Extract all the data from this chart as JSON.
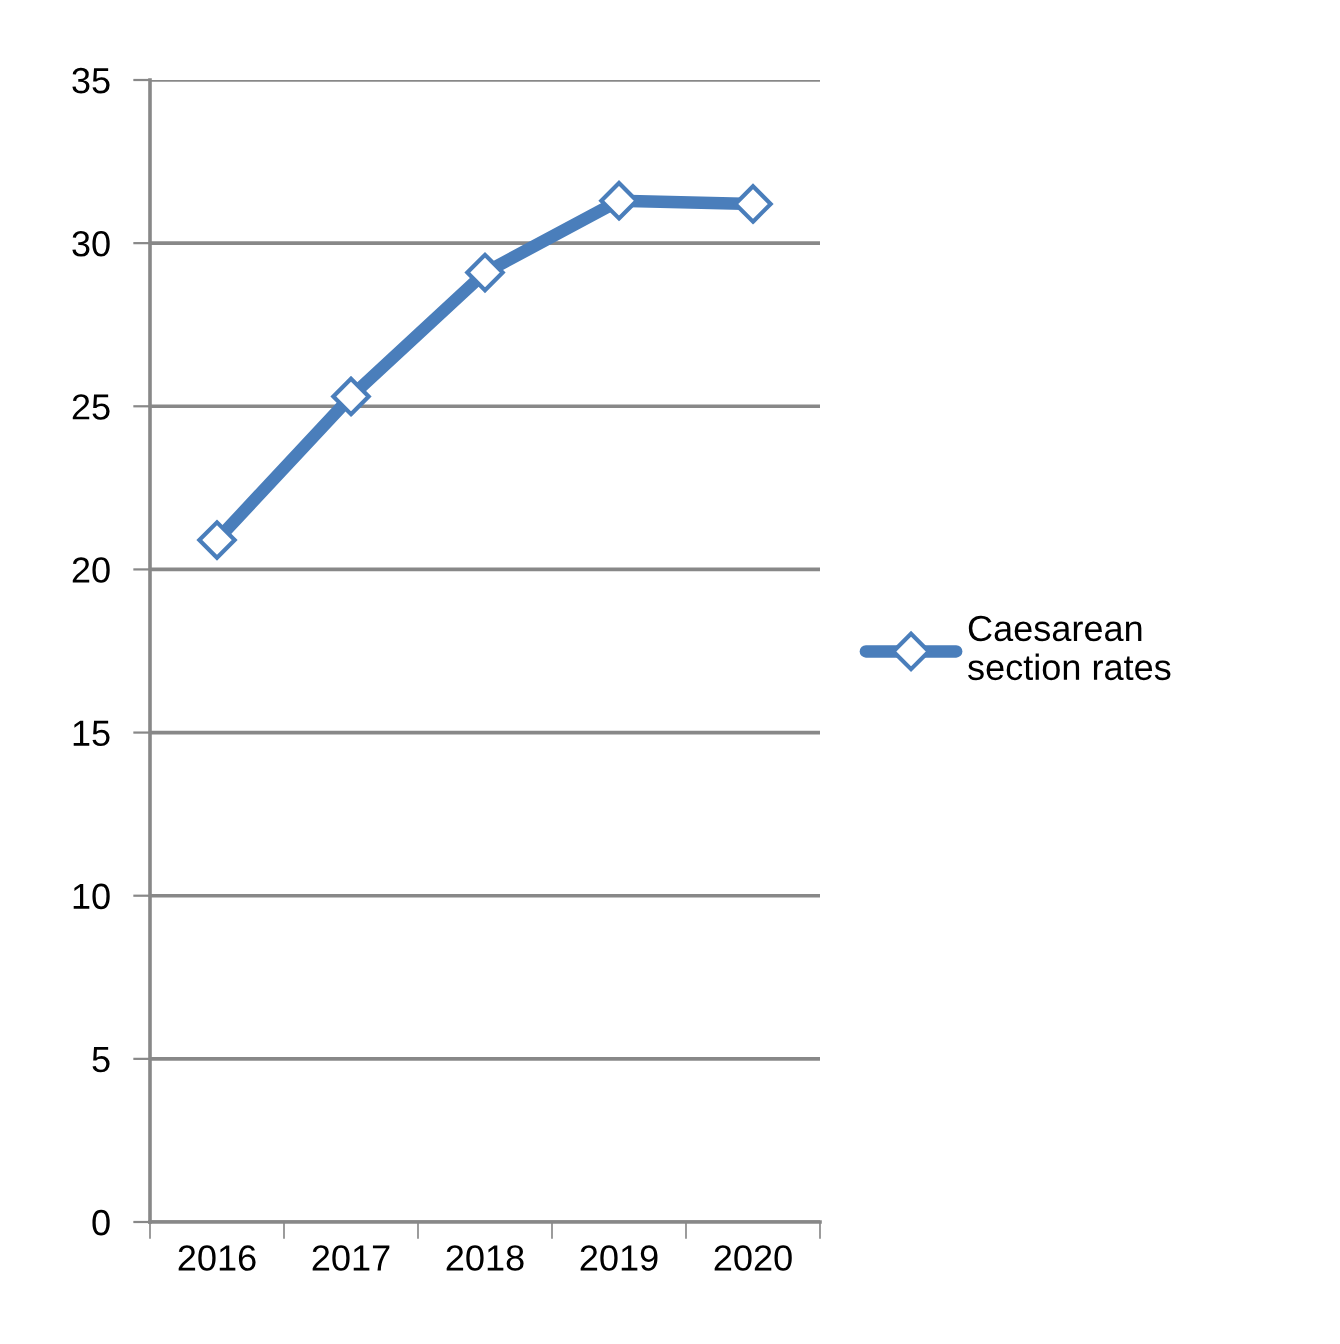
{
  "chart_data": {
    "type": "line",
    "categories": [
      "2016",
      "2017",
      "2018",
      "2019",
      "2020"
    ],
    "series": [
      {
        "name": "Caesarean\nsection rates",
        "color": "#4a7ebb",
        "values": [
          20.9,
          25.3,
          29.1,
          31.3,
          31.2
        ]
      }
    ],
    "ylim": [
      0,
      35
    ],
    "yticks": [
      0,
      5,
      10,
      15,
      20,
      25,
      30,
      35
    ],
    "grid": "y",
    "legend": "right",
    "marker": "diamond",
    "line_style": "solid"
  }
}
